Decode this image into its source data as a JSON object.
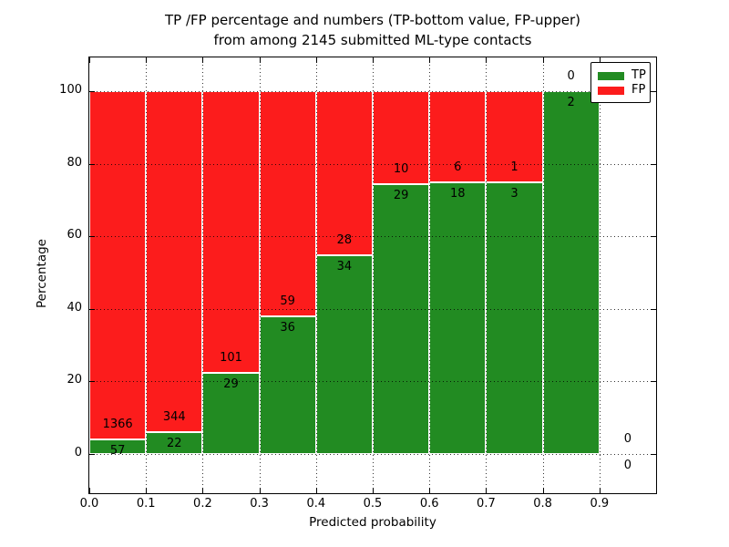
{
  "title": {
    "line1": "TP /FP percentage and numbers (TP-bottom value, FP-upper)",
    "line2": "from among 2145 submitted ML-type contacts"
  },
  "axis": {
    "xlabel": "Predicted probability",
    "ylabel": "Percentage"
  },
  "legend": {
    "position": "upper right",
    "items": [
      {
        "label": "TP",
        "color": "#228b22"
      },
      {
        "label": "FP",
        "color": "#fc1c1c"
      }
    ]
  },
  "chart_data": {
    "type": "bar",
    "stacked": true,
    "normalization": "each 0.1-wide probability bin stacked to 100 percent",
    "title": "TP /FP percentage and numbers (TP-bottom value, FP-upper) from among 2145 submitted ML-type contacts",
    "xlabel": "Predicted probability",
    "ylabel": "Percentage",
    "total_contacts": 2145,
    "bins": [
      "0.0-0.1",
      "0.1-0.2",
      "0.2-0.3",
      "0.3-0.4",
      "0.4-0.5",
      "0.5-0.6",
      "0.6-0.7",
      "0.7-0.8",
      "0.8-0.9",
      "0.9-1.0"
    ],
    "bin_centers": [
      0.05,
      0.15,
      0.25,
      0.35,
      0.45,
      0.55,
      0.65,
      0.75,
      0.85,
      0.95
    ],
    "series": [
      {
        "name": "TP",
        "color": "#228b22",
        "counts": [
          57,
          22,
          29,
          36,
          34,
          29,
          18,
          3,
          2,
          0
        ]
      },
      {
        "name": "FP",
        "color": "#fc1c1c",
        "counts": [
          1366,
          344,
          101,
          59,
          28,
          10,
          6,
          1,
          0,
          0
        ]
      }
    ],
    "tp_percent": [
      4.0,
      6.0,
      22.3,
      37.9,
      54.8,
      74.4,
      75.0,
      75.0,
      100.0,
      0.0
    ],
    "x_tick_labels": [
      "0.0",
      "0.1",
      "0.2",
      "0.3",
      "0.4",
      "0.5",
      "0.6",
      "0.7",
      "0.8",
      "0.9"
    ],
    "x_tick_values": [
      0.0,
      0.1,
      0.2,
      0.3,
      0.4,
      0.5,
      0.6,
      0.7,
      0.8,
      0.9
    ],
    "y_tick_labels": [
      "0",
      "20",
      "40",
      "60",
      "80",
      "100"
    ],
    "y_tick_values": [
      0,
      20,
      40,
      60,
      80,
      100
    ],
    "xlim": [
      0.0,
      1.0
    ],
    "ylim_display": [
      -10.8,
      109.2
    ],
    "grid": "dotted",
    "legend_position": "upper right",
    "bar_edge_color": "#ffffff"
  }
}
